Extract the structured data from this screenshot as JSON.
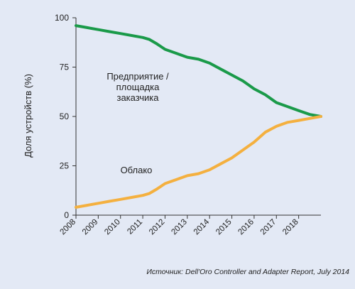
{
  "chart_data": {
    "type": "line",
    "title": "",
    "ylabel": "Доля устройств (%)",
    "xlabel": "",
    "ylim": [
      0,
      100
    ],
    "xlim": [
      2008,
      2019
    ],
    "yticks": [
      0,
      25,
      50,
      75,
      100
    ],
    "xticks": [
      "2008",
      "2009",
      "2010",
      "2011",
      "2012",
      "2013",
      "2014",
      "2015",
      "2016",
      "2017",
      "2018"
    ],
    "grid": false,
    "series": [
      {
        "name": "Предприятие / площадка заказчика",
        "name_lines": [
          "Предприятие /",
          "площадка",
          "заказчика"
        ],
        "color": "#1a9a49",
        "x": [
          2008,
          2008.5,
          2009,
          2009.5,
          2010,
          2010.5,
          2011,
          2011.3,
          2011.6,
          2012,
          2012.5,
          2013,
          2013.5,
          2014,
          2014.5,
          2015,
          2015.5,
          2016,
          2016.5,
          2017,
          2017.5,
          2018,
          2018.5,
          2019
        ],
        "values": [
          96,
          95,
          94,
          93,
          92,
          91,
          90,
          89,
          87,
          84,
          82,
          80,
          79,
          77,
          74,
          71,
          68,
          64,
          61,
          57,
          55,
          53,
          51,
          50
        ]
      },
      {
        "name": "Облако",
        "name_lines": [
          "Облако"
        ],
        "color": "#f4b03f",
        "x": [
          2008,
          2008.5,
          2009,
          2009.5,
          2010,
          2010.5,
          2011,
          2011.3,
          2011.6,
          2012,
          2012.5,
          2013,
          2013.5,
          2014,
          2014.5,
          2015,
          2015.5,
          2016,
          2016.5,
          2017,
          2017.5,
          2018,
          2018.5,
          2019
        ],
        "values": [
          4,
          5,
          6,
          7,
          8,
          9,
          10,
          11,
          13,
          16,
          18,
          20,
          21,
          23,
          26,
          29,
          33,
          37,
          42,
          45,
          47,
          48,
          49,
          50
        ]
      }
    ],
    "source": "Источник: Dell'Oro Controller and Adapter Report, July 2014"
  }
}
